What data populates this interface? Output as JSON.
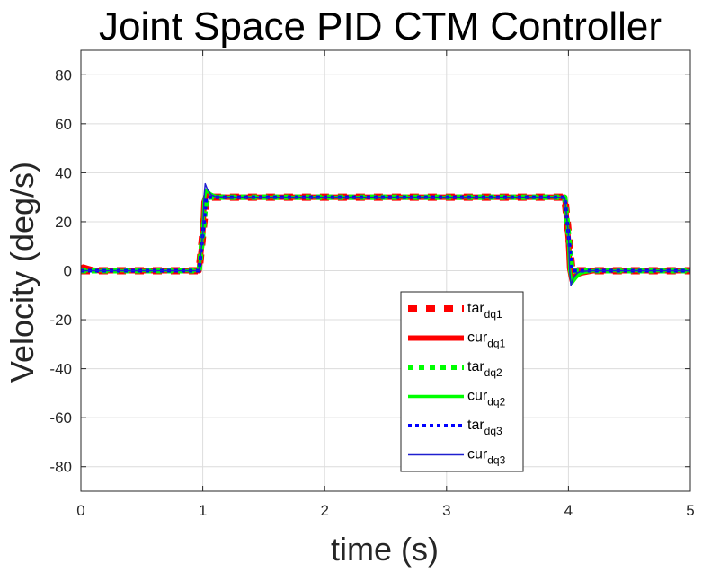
{
  "chart_data": {
    "type": "line",
    "title": "Joint Space PID CTM Controller",
    "xlabel": "time (s)",
    "ylabel": "Velocity (deg/s)",
    "xlim": [
      0,
      5
    ],
    "ylim": [
      -90,
      90
    ],
    "xticks": [
      0,
      1,
      2,
      3,
      4,
      5
    ],
    "yticks": [
      -80,
      -60,
      -40,
      -20,
      0,
      20,
      40,
      60,
      80
    ],
    "xtick_labels": [
      "0",
      "1",
      "2",
      "3",
      "4",
      "5"
    ],
    "ytick_labels": [
      "-80",
      "-60",
      "-40",
      "-20",
      "0",
      "20",
      "40",
      "60",
      "80"
    ],
    "grid": true,
    "legend_position": "bottom-center-right",
    "series": [
      {
        "name_main": "tar",
        "name_sub": "dq1",
        "color": "#ff0000",
        "style": "dash-thick",
        "x": [
          0,
          0.97,
          1.0,
          1.03,
          3.97,
          4.0,
          4.03,
          5
        ],
        "y": [
          0,
          0,
          15,
          30,
          30,
          15,
          0,
          0
        ]
      },
      {
        "name_main": "cur",
        "name_sub": "dq1",
        "color": "#ff0000",
        "style": "solid-thick",
        "x": [
          0,
          0.02,
          0.05,
          0.1,
          0.15,
          0.97,
          1.0,
          1.01,
          1.03,
          1.06,
          1.1,
          1.2,
          3.97,
          4.0,
          4.01,
          4.03,
          4.06,
          4.1,
          4.2,
          5
        ],
        "y": [
          0.5,
          1.5,
          1.0,
          0.3,
          0,
          0,
          15,
          28,
          31,
          30.5,
          30.2,
          30,
          30,
          12,
          1,
          -4,
          -2,
          -1,
          0,
          0
        ]
      },
      {
        "name_main": "tar",
        "name_sub": "dq2",
        "color": "#00ff00",
        "style": "dot-thick",
        "x": [
          0,
          0.97,
          1.0,
          1.03,
          3.97,
          4.0,
          4.03,
          5
        ],
        "y": [
          0,
          0,
          15,
          30,
          30,
          15,
          0,
          0
        ]
      },
      {
        "name_main": "cur",
        "name_sub": "dq2",
        "color": "#00ff00",
        "style": "solid-medium",
        "x": [
          0,
          0.97,
          1.0,
          1.01,
          1.03,
          1.06,
          1.1,
          1.2,
          3.97,
          4.0,
          4.01,
          4.03,
          4.06,
          4.1,
          4.2,
          5
        ],
        "y": [
          0,
          0,
          15,
          29,
          33,
          31.5,
          30.5,
          30,
          30,
          14,
          0,
          -5,
          -3,
          -1,
          0,
          0
        ]
      },
      {
        "name_main": "tar",
        "name_sub": "dq3",
        "color": "#0000ff",
        "style": "dot-medium",
        "x": [
          0,
          0.97,
          1.0,
          1.03,
          3.97,
          4.0,
          4.03,
          5
        ],
        "y": [
          0,
          0,
          15,
          30,
          30,
          15,
          0,
          0
        ]
      },
      {
        "name_main": "cur",
        "name_sub": "dq3",
        "color": "#1f1fcf",
        "style": "solid-thin",
        "x": [
          0,
          0.97,
          1.0,
          1.01,
          1.02,
          1.04,
          1.07,
          1.1,
          1.2,
          3.97,
          4.0,
          4.01,
          4.02,
          4.04,
          4.07,
          4.1,
          4.2,
          5
        ],
        "y": [
          0,
          0,
          15,
          30,
          35.5,
          33,
          31,
          30.3,
          30,
          30,
          15,
          0,
          -6,
          -3,
          -1,
          -0.3,
          0,
          0
        ]
      }
    ]
  }
}
